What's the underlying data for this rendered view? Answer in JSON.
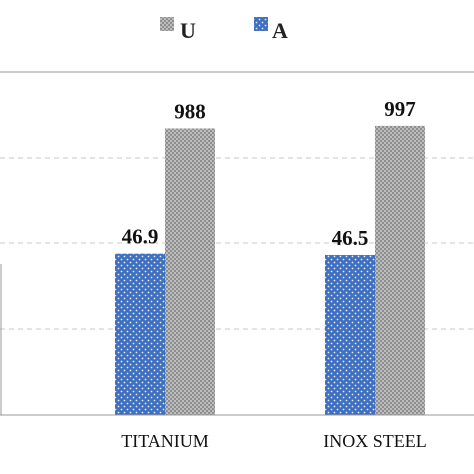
{
  "chart_data": {
    "type": "bar",
    "categories": [
      "TITANIUM",
      "INOX STEEL"
    ],
    "series": [
      {
        "name": "U",
        "values": [
          988,
          997
        ],
        "labels": [
          "988",
          "997"
        ],
        "color": "#a8a8a8",
        "pattern": "checker"
      },
      {
        "name": "A",
        "values": [
          46.9,
          46.5
        ],
        "labels": [
          "46.9",
          "46.5"
        ],
        "color": "#3f6fc0",
        "pattern": "dots"
      }
    ],
    "legend_order": [
      "U",
      "A"
    ],
    "legend_position": "top-center",
    "grid": true,
    "note": "Two series are drawn on different scales; U bars (gray) and A bars (blue)."
  }
}
